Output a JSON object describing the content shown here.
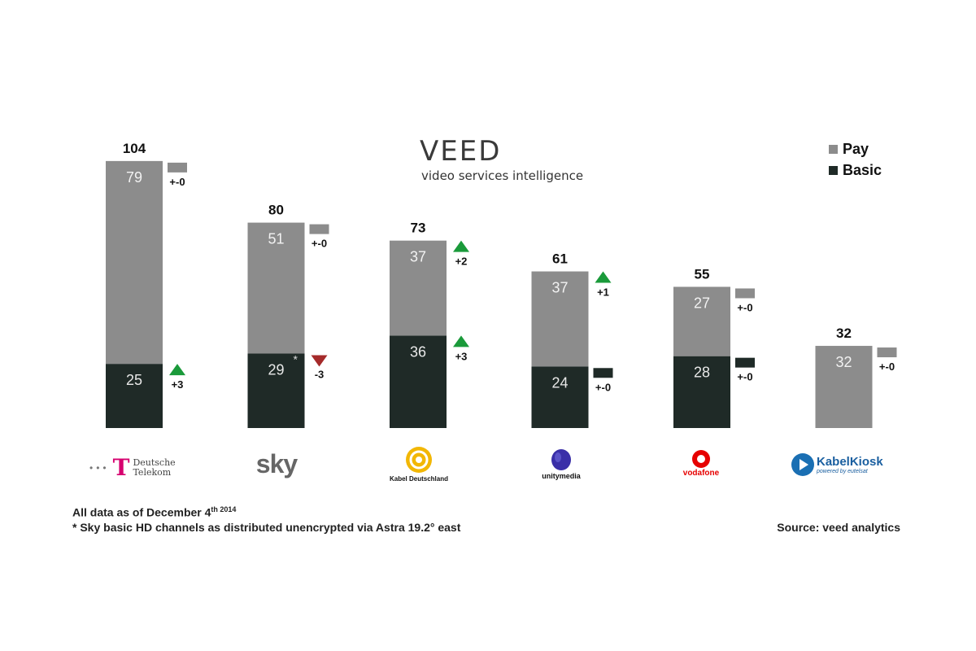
{
  "brand": {
    "name": "VEED",
    "tagline": "video services intelligence"
  },
  "legend": {
    "pay": "Pay",
    "basic": "Basic"
  },
  "colors": {
    "pay": "#8c8c8c",
    "basic": "#1f2a27",
    "up": "#1a9a3a",
    "down": "#a52a2a"
  },
  "chart_data": {
    "type": "bar",
    "stacked": true,
    "categories": [
      "Deutsche Telekom",
      "sky",
      "Kabel Deutschland",
      "unitymedia",
      "vodafone",
      "KabelKiosk"
    ],
    "series": [
      {
        "name": "Basic",
        "values": [
          25,
          29,
          36,
          24,
          28,
          0
        ]
      },
      {
        "name": "Pay",
        "values": [
          79,
          51,
          37,
          37,
          27,
          32
        ]
      }
    ],
    "totals": [
      "104",
      "80",
      "73",
      "61",
      "55",
      "32"
    ],
    "changes": {
      "pay": [
        "+-0",
        "+-0",
        "+2",
        "+1",
        "+-0",
        "+-0"
      ],
      "basic": [
        "+3",
        "-3",
        "+3",
        "+-0",
        "+-0",
        ""
      ]
    },
    "asterisk_on": "sky",
    "ylim": [
      0,
      104
    ]
  },
  "logos": {
    "telekom_line1": "Deutsche",
    "telekom_line2": "Telekom",
    "sky": "sky",
    "kabel": "Kabel Deutschland",
    "unitymedia": "unitymedia",
    "vodafone": "vodafone",
    "kabelkiosk": "KabelKiosk",
    "kabelkiosk_sub": "powered by eutelsat"
  },
  "notes": {
    "line1": "All data as of December 4",
    "line1_sup": "th 2014",
    "line2": "* Sky basic HD channels as distributed unencrypted via Astra 19.2° east",
    "source": "Source: veed analytics"
  }
}
